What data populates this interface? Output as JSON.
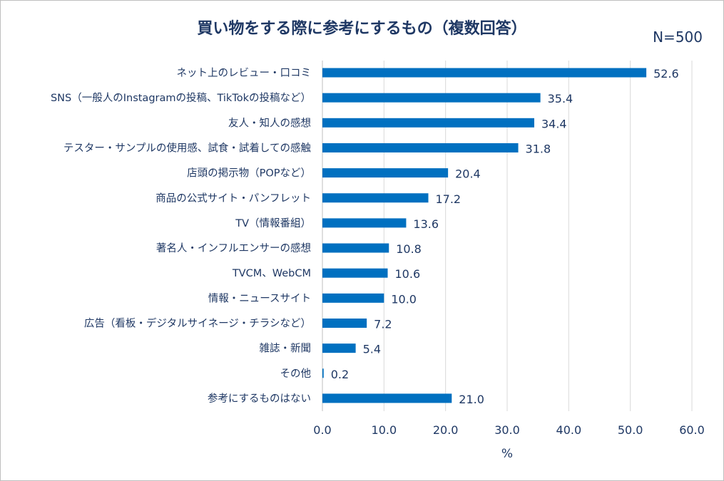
{
  "n_label": "N=500",
  "chart_data": {
    "type": "bar",
    "orientation": "horizontal",
    "title": "買い物をする際に参考にするもの（複数回答）",
    "xlabel": "%",
    "ylabel": "",
    "xlim": [
      0,
      60
    ],
    "xticks": [
      "0.0",
      "10.0",
      "20.0",
      "30.0",
      "40.0",
      "50.0",
      "60.0"
    ],
    "grid": true,
    "bar_color": "#0070c0",
    "categories": [
      "ネット上のレビュー・口コミ",
      "SNS（一般人のInstagramの投稿、TikTokの投稿など）",
      "友人・知人の感想",
      "テスター・サンプルの使用感、試食・試着しての感触",
      "店頭の掲示物（POPなど）",
      "商品の公式サイト・パンフレット",
      "TV（情報番組）",
      "著名人・インフルエンサーの感想",
      "TVCM、WebCM",
      "情報・ニュースサイト",
      "広告（看板・デジタルサイネージ・チラシなど）",
      "雑誌・新聞",
      "その他",
      "参考にするものはない"
    ],
    "values": [
      52.6,
      35.4,
      34.4,
      31.8,
      20.4,
      17.2,
      13.6,
      10.8,
      10.6,
      10.0,
      7.2,
      5.4,
      0.2,
      21.0
    ],
    "value_labels": [
      "52.6",
      "35.4",
      "34.4",
      "31.8",
      "20.4",
      "17.2",
      "13.6",
      "10.8",
      "10.6",
      "10.0",
      "7.2",
      "5.4",
      "0.2",
      "21.0"
    ]
  }
}
